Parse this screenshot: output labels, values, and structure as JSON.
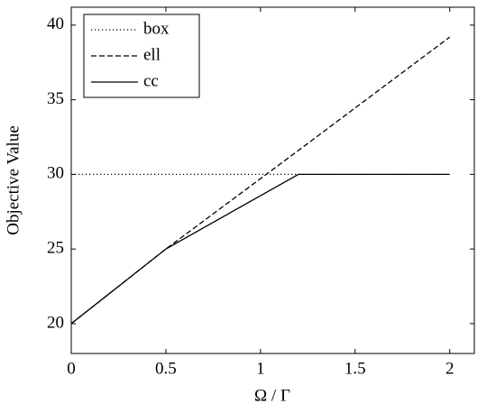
{
  "chart_data": {
    "type": "line",
    "x": [
      0,
      0.5,
      1.2,
      2
    ],
    "series": [
      {
        "name": "box",
        "color": "#000000",
        "dash": "dotted",
        "values": [
          30,
          30,
          30,
          30
        ]
      },
      {
        "name": "ell",
        "color": "#000000",
        "dash": "dashed",
        "values": [
          20,
          25,
          31.6,
          39.2
        ]
      },
      {
        "name": "cc",
        "color": "#000000",
        "dash": "solid",
        "values": [
          20,
          25,
          30,
          30
        ]
      }
    ],
    "xlabel": "Ω / Γ",
    "ylabel": "Objective Value",
    "xlim": [
      0,
      2.13
    ],
    "ylim": [
      18,
      41.2
    ],
    "xticks": [
      0,
      0.5,
      1,
      1.5,
      2
    ],
    "yticks": [
      20,
      25,
      30,
      35,
      40
    ],
    "legend": "upper left"
  }
}
